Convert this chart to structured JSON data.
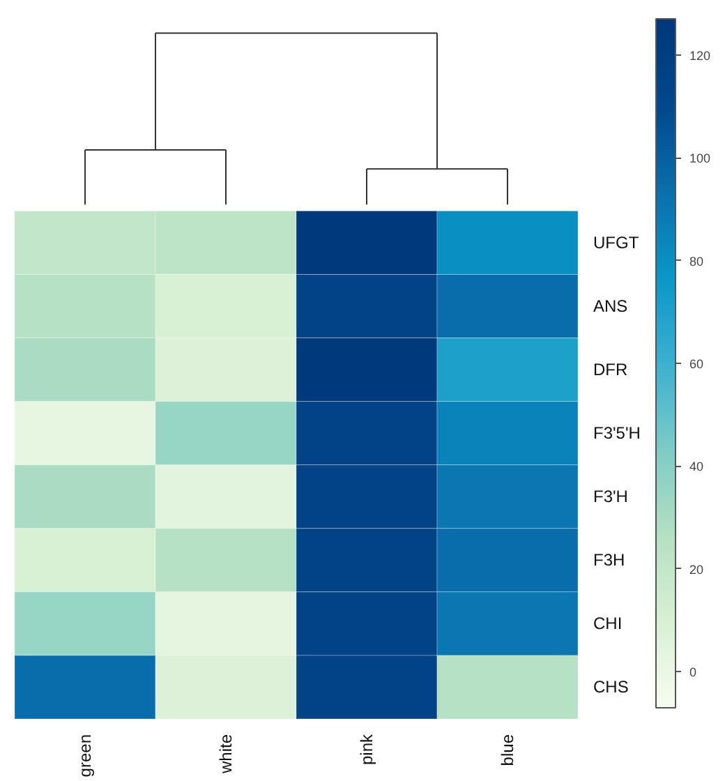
{
  "chart_data": {
    "type": "heatmap",
    "categories": [
      "green",
      "white",
      "pink",
      "blue"
    ],
    "y_categories": [
      "UFGT",
      "ANS",
      "DFR",
      "F3'5'H",
      "F3'H",
      "F3H",
      "CHI",
      "CHS"
    ],
    "cells": [
      [
        20,
        22,
        125,
        80
      ],
      [
        25,
        10,
        115,
        95
      ],
      [
        30,
        8,
        125,
        70
      ],
      [
        2,
        35,
        115,
        85
      ],
      [
        30,
        5,
        115,
        90
      ],
      [
        10,
        25,
        115,
        95
      ],
      [
        35,
        3,
        115,
        90
      ],
      [
        95,
        8,
        115,
        25
      ]
    ],
    "clim": [
      -7,
      127
    ],
    "cticks": [
      0,
      20,
      40,
      60,
      80,
      100,
      120
    ]
  }
}
